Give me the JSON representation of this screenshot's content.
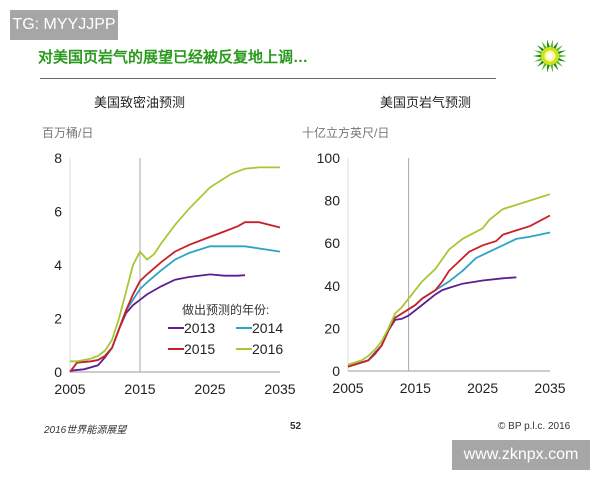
{
  "watermark_top": "TG: MYYJJPP",
  "watermark_bottom": "www.zknpx.com",
  "title": "对美国页岩气的展望已经被反复地上调…",
  "footer": {
    "left": "2016世界能源展望",
    "page": "52",
    "right": "© BP p.l.c. 2016"
  },
  "colors": {
    "2013": "#5b1f8f",
    "2014": "#2ea3c9",
    "2015": "#c8202a",
    "2016": "#a5c934",
    "title": "#2a9a1e"
  },
  "legend": {
    "title": "做出预测的年份:",
    "entries": [
      "2013",
      "2014",
      "2015",
      "2016"
    ]
  },
  "chart_data": [
    {
      "type": "line",
      "title": "美国致密油预测",
      "ylabel": "百万桶/日",
      "xlim": [
        2005,
        2035
      ],
      "ylim": [
        0,
        8
      ],
      "xticks": [
        "2005",
        "2015",
        "2025",
        "2035"
      ],
      "yticks": [
        "0",
        "2",
        "4",
        "6",
        "8"
      ],
      "marker_year": 2015,
      "legend": "bottom-right",
      "series": [
        {
          "name": "2013",
          "x": [
            2005,
            2007,
            2009,
            2010,
            2011,
            2012,
            2013,
            2014,
            2015,
            2016,
            2018,
            2020,
            2022,
            2025,
            2027,
            2029,
            2030
          ],
          "y": [
            0.05,
            0.1,
            0.25,
            0.55,
            0.9,
            1.6,
            2.2,
            2.5,
            2.7,
            2.9,
            3.2,
            3.45,
            3.55,
            3.65,
            3.6,
            3.6,
            3.62
          ]
        },
        {
          "name": "2014",
          "x": [
            2005,
            2006,
            2008,
            2009,
            2010,
            2011,
            2012,
            2013,
            2014,
            2015,
            2016,
            2018,
            2020,
            2022,
            2025,
            2028,
            2030,
            2035
          ],
          "y": [
            0,
            0.35,
            0.4,
            0.45,
            0.6,
            0.9,
            1.6,
            2.3,
            2.7,
            3.1,
            3.35,
            3.8,
            4.2,
            4.45,
            4.7,
            4.7,
            4.7,
            4.5
          ]
        },
        {
          "name": "2015",
          "x": [
            2005,
            2006,
            2008,
            2009,
            2010,
            2011,
            2012,
            2013,
            2014,
            2015,
            2016,
            2018,
            2020,
            2022,
            2025,
            2027,
            2029,
            2030,
            2032,
            2035
          ],
          "y": [
            0,
            0.35,
            0.4,
            0.45,
            0.6,
            0.9,
            1.6,
            2.3,
            2.9,
            3.4,
            3.65,
            4.1,
            4.5,
            4.75,
            5.05,
            5.25,
            5.45,
            5.6,
            5.6,
            5.4
          ]
        },
        {
          "name": "2016",
          "x": [
            2005,
            2006,
            2007,
            2008,
            2009,
            2010,
            2011,
            2012,
            2013,
            2014,
            2015,
            2016,
            2017,
            2018,
            2020,
            2022,
            2025,
            2028,
            2030,
            2032,
            2035
          ],
          "y": [
            0.4,
            0.4,
            0.45,
            0.5,
            0.6,
            0.8,
            1.2,
            2.0,
            3.0,
            4.0,
            4.5,
            4.2,
            4.4,
            4.8,
            5.5,
            6.1,
            6.9,
            7.4,
            7.6,
            7.65,
            7.65
          ]
        }
      ]
    },
    {
      "type": "line",
      "title": "美国页岩气预测",
      "ylabel": "十亿立方英尺/日",
      "xlim": [
        2005,
        2035
      ],
      "ylim": [
        0,
        100
      ],
      "xticks": [
        "2005",
        "2015",
        "2025",
        "2035"
      ],
      "yticks": [
        "0",
        "20",
        "40",
        "60",
        "80",
        "100"
      ],
      "marker_year": 2014,
      "series": [
        {
          "name": "2013",
          "x": [
            2005,
            2008,
            2010,
            2011,
            2012,
            2013,
            2014,
            2016,
            2018,
            2019,
            2020,
            2022,
            2025,
            2028,
            2030
          ],
          "y": [
            2,
            5,
            12,
            19,
            24,
            24.5,
            26,
            31,
            36,
            38,
            39,
            41,
            42.5,
            43.5,
            44
          ]
        },
        {
          "name": "2014",
          "x": [
            2005,
            2007,
            2008,
            2009,
            2010,
            2011,
            2012,
            2013,
            2014,
            2015,
            2016,
            2018,
            2019,
            2020,
            2022,
            2024,
            2026,
            2028,
            2030,
            2032,
            2035
          ],
          "y": [
            2,
            4,
            5,
            8,
            12,
            19,
            25,
            27,
            29,
            31,
            34,
            38,
            40,
            42,
            47,
            53,
            56,
            59,
            62,
            63,
            65
          ]
        },
        {
          "name": "2015",
          "x": [
            2005,
            2007,
            2008,
            2009,
            2010,
            2011,
            2012,
            2013,
            2014,
            2015,
            2016,
            2018,
            2019,
            2020,
            2022,
            2023,
            2025,
            2027,
            2028,
            2030,
            2032,
            2035
          ],
          "y": [
            2,
            4,
            5,
            8,
            12,
            19,
            25,
            27,
            29,
            31,
            34,
            38,
            42,
            47,
            53,
            56,
            59,
            61,
            64,
            66,
            68,
            73
          ]
        },
        {
          "name": "2016",
          "x": [
            2005,
            2007,
            2008,
            2009,
            2010,
            2011,
            2012,
            2013,
            2014,
            2015,
            2016,
            2018,
            2020,
            2022,
            2025,
            2026,
            2028,
            2030,
            2032,
            2035
          ],
          "y": [
            3,
            5,
            7,
            10,
            14,
            20,
            27,
            30,
            34,
            38,
            42,
            48,
            57,
            62,
            67,
            71,
            76,
            78,
            80,
            83
          ]
        }
      ]
    }
  ]
}
